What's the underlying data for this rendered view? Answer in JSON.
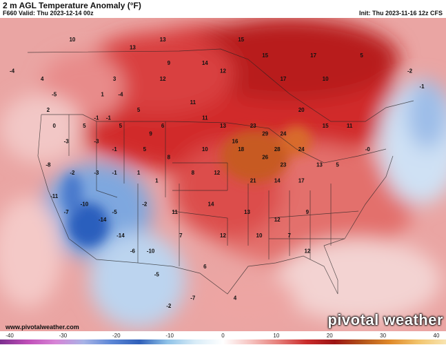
{
  "header": {
    "title": "2 m AGL Temperature Anomaly (°F)",
    "valid": "F660 Valid: Thu 2023-12-14 00z",
    "init": "Init: Thu 2023-11-16 12z CFS"
  },
  "footer": {
    "website": "www.pivotalweather.com",
    "brand": "pivotal weather"
  },
  "colorbar": {
    "ticks": [
      "-40",
      "-30",
      "-20",
      "-10",
      "0",
      "10",
      "20",
      "30",
      "40"
    ],
    "tick_values": [
      -40,
      -30,
      -20,
      -10,
      0,
      10,
      20,
      30,
      40
    ],
    "range": [
      -40,
      40
    ],
    "stops": [
      "#7b2e8e",
      "#c04fb8",
      "#d784d6",
      "#a7b3e6",
      "#5b86d6",
      "#2f5fb9",
      "#8ec2e8",
      "#d8ecf7",
      "#ffffff",
      "#f6c3c0",
      "#e57d78",
      "#c92b2b",
      "#9c1414",
      "#b2541a",
      "#e08a2a",
      "#f2c46c",
      "#f8e4b0"
    ]
  },
  "map_values": [
    {
      "label": "10",
      "lon": -120,
      "lat": 55
    },
    {
      "label": "13",
      "lon": -110,
      "lat": 54
    },
    {
      "label": "13",
      "lon": -105,
      "lat": 55
    },
    {
      "label": "15",
      "lon": -88,
      "lat": 53
    },
    {
      "label": "17",
      "lon": -85,
      "lat": 50
    },
    {
      "label": "15",
      "lon": -92,
      "lat": 55
    },
    {
      "label": "-4",
      "lon": -130,
      "lat": 51
    },
    {
      "label": "4",
      "lon": -125,
      "lat": 50
    },
    {
      "label": "3",
      "lon": -113,
      "lat": 50
    },
    {
      "label": "-4",
      "lon": -112,
      "lat": 48
    },
    {
      "label": "1",
      "lon": -115,
      "lat": 48
    },
    {
      "label": "12",
      "lon": -105,
      "lat": 50
    },
    {
      "label": "9",
      "lon": -104,
      "lat": 52
    },
    {
      "label": "14",
      "lon": -98,
      "lat": 52
    },
    {
      "label": "12",
      "lon": -95,
      "lat": 51
    },
    {
      "label": "17",
      "lon": -80,
      "lat": 53
    },
    {
      "label": "10",
      "lon": -78,
      "lat": 50
    },
    {
      "label": "5",
      "lon": -72,
      "lat": 53
    },
    {
      "label": "-2",
      "lon": -64,
      "lat": 51
    },
    {
      "label": "-1",
      "lon": -62,
      "lat": 49
    },
    {
      "label": "-1",
      "lon": -114,
      "lat": 45
    },
    {
      "label": "5",
      "lon": -109,
      "lat": 46
    },
    {
      "label": "2",
      "lon": -124,
      "lat": 46
    },
    {
      "label": "-5",
      "lon": -123,
      "lat": 48
    },
    {
      "label": "0",
      "lon": -123,
      "lat": 44
    },
    {
      "label": "5",
      "lon": -118,
      "lat": 44
    },
    {
      "label": "-1",
      "lon": -116,
      "lat": 45
    },
    {
      "label": "5",
      "lon": -112,
      "lat": 44
    },
    {
      "label": "9",
      "lon": -107,
      "lat": 43
    },
    {
      "label": "6",
      "lon": -105,
      "lat": 44
    },
    {
      "label": "11",
      "lon": -100,
      "lat": 47
    },
    {
      "label": "11",
      "lon": -98,
      "lat": 45
    },
    {
      "label": "13",
      "lon": -95,
      "lat": 44
    },
    {
      "label": "16",
      "lon": -93,
      "lat": 42
    },
    {
      "label": "23",
      "lon": -90,
      "lat": 44
    },
    {
      "label": "29",
      "lon": -88,
      "lat": 43
    },
    {
      "label": "26",
      "lon": -88,
      "lat": 40
    },
    {
      "label": "28",
      "lon": -86,
      "lat": 41
    },
    {
      "label": "24",
      "lon": -85,
      "lat": 43
    },
    {
      "label": "20",
      "lon": -82,
      "lat": 46
    },
    {
      "label": "23",
      "lon": -85,
      "lat": 39
    },
    {
      "label": "24",
      "lon": -82,
      "lat": 41
    },
    {
      "label": "15",
      "lon": -78,
      "lat": 44
    },
    {
      "label": "11",
      "lon": -74,
      "lat": 44
    },
    {
      "label": "-3",
      "lon": -121,
      "lat": 42
    },
    {
      "label": "-3",
      "lon": -116,
      "lat": 42
    },
    {
      "label": "-1",
      "lon": -113,
      "lat": 41
    },
    {
      "label": "5",
      "lon": -108,
      "lat": 41
    },
    {
      "label": "8",
      "lon": -104,
      "lat": 40
    },
    {
      "label": "10",
      "lon": -98,
      "lat": 41
    },
    {
      "label": "18",
      "lon": -92,
      "lat": 41
    },
    {
      "label": "-8",
      "lon": -124,
      "lat": 39
    },
    {
      "label": "-2",
      "lon": -120,
      "lat": 38
    },
    {
      "label": "-3",
      "lon": -116,
      "lat": 38
    },
    {
      "label": "-1",
      "lon": -113,
      "lat": 38
    },
    {
      "label": "1",
      "lon": -109,
      "lat": 38
    },
    {
      "label": "1",
      "lon": -106,
      "lat": 37
    },
    {
      "label": "8",
      "lon": -100,
      "lat": 38
    },
    {
      "label": "12",
      "lon": -96,
      "lat": 38
    },
    {
      "label": "21",
      "lon": -90,
      "lat": 37
    },
    {
      "label": "14",
      "lon": -86,
      "lat": 37
    },
    {
      "label": "17",
      "lon": -82,
      "lat": 37
    },
    {
      "label": "13",
      "lon": -79,
      "lat": 39
    },
    {
      "label": "5",
      "lon": -76,
      "lat": 39
    },
    {
      "label": "-0",
      "lon": -71,
      "lat": 41
    },
    {
      "label": "-11",
      "lon": -123,
      "lat": 35
    },
    {
      "label": "-10",
      "lon": -118,
      "lat": 34
    },
    {
      "label": "-7",
      "lon": -121,
      "lat": 33
    },
    {
      "label": "-14",
      "lon": -115,
      "lat": 32
    },
    {
      "label": "-5",
      "lon": -113,
      "lat": 33
    },
    {
      "label": "-14",
      "lon": -112,
      "lat": 30
    },
    {
      "label": "-2",
      "lon": -108,
      "lat": 34
    },
    {
      "label": "11",
      "lon": -103,
      "lat": 33
    },
    {
      "label": "14",
      "lon": -97,
      "lat": 34
    },
    {
      "label": "13",
      "lon": -91,
      "lat": 33
    },
    {
      "label": "12",
      "lon": -86,
      "lat": 32
    },
    {
      "label": "9",
      "lon": -81,
      "lat": 33
    },
    {
      "label": "-6",
      "lon": -110,
      "lat": 28
    },
    {
      "label": "-10",
      "lon": -107,
      "lat": 28
    },
    {
      "label": "7",
      "lon": -102,
      "lat": 30
    },
    {
      "label": "12",
      "lon": -95,
      "lat": 30
    },
    {
      "label": "10",
      "lon": -89,
      "lat": 30
    },
    {
      "label": "7",
      "lon": -84,
      "lat": 30
    },
    {
      "label": "12",
      "lon": -81,
      "lat": 28
    },
    {
      "label": "-5",
      "lon": -106,
      "lat": 25
    },
    {
      "label": "6",
      "lon": -98,
      "lat": 26
    },
    {
      "label": "-2",
      "lon": -104,
      "lat": 21
    },
    {
      "label": "-7",
      "lon": -100,
      "lat": 22
    },
    {
      "label": "4",
      "lon": -93,
      "lat": 22
    }
  ]
}
